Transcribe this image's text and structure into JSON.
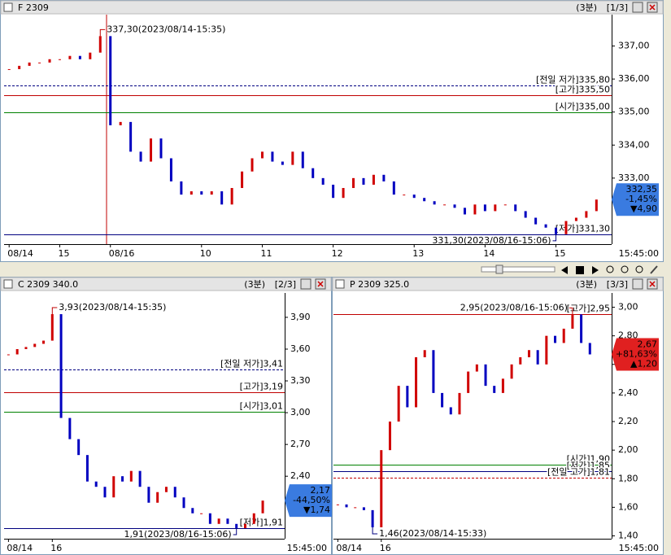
{
  "chart_data": [
    {
      "type": "candle",
      "title": "F 2309",
      "interval": "(3분)",
      "page": "[1/3]",
      "end_label": "15:45:00",
      "up_color": "#d00000",
      "down_color": "#0000c0",
      "ylim": [
        331.0,
        337.95
      ],
      "yticks": [
        {
          "value": 333,
          "label": "333,00"
        },
        {
          "value": 334,
          "label": "334,00"
        },
        {
          "value": 335,
          "label": "335,00"
        },
        {
          "value": 336,
          "label": "336,00"
        },
        {
          "value": 337,
          "label": "337,00"
        }
      ],
      "categories": [
        "08/14",
        null,
        null,
        null,
        null,
        "15",
        null,
        null,
        null,
        null,
        "08/16",
        null,
        null,
        null,
        null,
        null,
        null,
        null,
        null,
        "10",
        null,
        null,
        null,
        null,
        null,
        "11",
        null,
        null,
        null,
        null,
        null,
        null,
        "12",
        null,
        null,
        null,
        null,
        null,
        null,
        null,
        "13",
        null,
        null,
        null,
        null,
        null,
        null,
        "14",
        null,
        null,
        null,
        null,
        null,
        null,
        "15",
        null,
        null,
        null,
        null
      ],
      "values": [
        336.3,
        336.4,
        336.5,
        336.5,
        336.6,
        336.6,
        336.7,
        336.6,
        336.8,
        337.3,
        334.6,
        334.7,
        333.8,
        333.5,
        334.2,
        333.6,
        332.9,
        332.5,
        332.6,
        332.5,
        332.6,
        332.2,
        332.7,
        333.2,
        333.6,
        333.8,
        333.5,
        333.4,
        333.8,
        333.3,
        333.0,
        332.8,
        332.4,
        332.7,
        333.0,
        332.8,
        333.1,
        332.9,
        332.5,
        332.5,
        332.4,
        332.3,
        332.2,
        332.2,
        332.1,
        331.9,
        332.2,
        332.0,
        332.2,
        332.2,
        332.0,
        331.8,
        331.6,
        331.5,
        331.3,
        331.7,
        331.8,
        332.0,
        332.35
      ],
      "reference_lines": [
        {
          "label": "[전일 저가]335,80",
          "value": 335.8,
          "color": "#000080",
          "dashed": true
        },
        {
          "label": "[고가]335,50",
          "value": 335.5,
          "color": "#c00000",
          "dashed": false
        },
        {
          "label": "[시가]335,00",
          "value": 335.0,
          "color": "#008000",
          "dashed": false
        },
        {
          "label": "[저가]331,30",
          "value": 331.3,
          "color": "#000080",
          "dashed": false
        }
      ],
      "annotations": [
        {
          "label": "337,30(2023/08/14-15:35)",
          "value": 337.3,
          "index": 9,
          "color": "#c00000"
        },
        {
          "label": "331,30(2023/08/16-15:06)",
          "value": 331.3,
          "index": 54,
          "color": "#000080"
        }
      ],
      "price_box": {
        "price": "332,35",
        "change_pct": "-1,45%",
        "change": "▼4,90",
        "color": "#3a7be0"
      }
    },
    {
      "type": "candle",
      "title": "C 2309 340.0",
      "interval": "(3분)",
      "page": "[2/3]",
      "end_label": "15:45:00",
      "up_color": "#d00000",
      "down_color": "#0000c0",
      "ylim": [
        1.81,
        4.13
      ],
      "yticks": [
        {
          "value": 2.4,
          "label": "2,40"
        },
        {
          "value": 2.7,
          "label": "2,70"
        },
        {
          "value": 3.0,
          "label": "3,00"
        },
        {
          "value": 3.3,
          "label": "3,30"
        },
        {
          "value": 3.6,
          "label": "3,60"
        },
        {
          "value": 3.9,
          "label": "3,90"
        }
      ],
      "categories": [
        "08/14",
        null,
        null,
        null,
        null,
        "16",
        null,
        null,
        null,
        null,
        null,
        null,
        null,
        null,
        null,
        null,
        null,
        null,
        null,
        null,
        null,
        null,
        null,
        null,
        null,
        null,
        null,
        null,
        null,
        null
      ],
      "values": [
        3.55,
        3.6,
        3.62,
        3.65,
        3.68,
        3.93,
        2.95,
        2.75,
        2.6,
        2.35,
        2.3,
        2.2,
        2.4,
        2.35,
        2.45,
        2.3,
        2.15,
        2.25,
        2.3,
        2.2,
        2.1,
        2.05,
        2.05,
        1.95,
        2.0,
        1.95,
        1.91,
        1.95,
        2.05,
        2.17
      ],
      "reference_lines": [
        {
          "label": "[전일 저가]3,41",
          "value": 3.41,
          "color": "#000080",
          "dashed": true
        },
        {
          "label": "[고가]3,19",
          "value": 3.19,
          "color": "#c00000",
          "dashed": false
        },
        {
          "label": "[시가]3,01",
          "value": 3.01,
          "color": "#008000",
          "dashed": false
        },
        {
          "label": "[저가]1,91",
          "value": 1.91,
          "color": "#000080",
          "dashed": false
        }
      ],
      "annotations": [
        {
          "label": "3,93(2023/08/14-15:35)",
          "value": 3.93,
          "index": 5,
          "color": "#c00000"
        },
        {
          "label": "1,91(2023/08/16-15:06)",
          "value": 1.91,
          "index": 26,
          "color": "#000080"
        }
      ],
      "price_box": {
        "price": "2,17",
        "change_pct": "-44,50%",
        "change": "▼1,74",
        "color": "#3a7be0"
      }
    },
    {
      "type": "candle",
      "title": "P 2309 325.0",
      "interval": "(3분)",
      "page": "[3/3]",
      "end_label": "15:45:00",
      "up_color": "#d00000",
      "down_color": "#0000c0",
      "ylim": [
        1.38,
        3.1
      ],
      "yticks": [
        {
          "value": 1.4,
          "label": "1,40"
        },
        {
          "value": 1.6,
          "label": "1,60"
        },
        {
          "value": 1.8,
          "label": "1,80"
        },
        {
          "value": 2.0,
          "label": "2,00"
        },
        {
          "value": 2.2,
          "label": "2,20"
        },
        {
          "value": 2.4,
          "label": "2,40"
        },
        {
          "value": 2.6,
          "label": "2,60"
        },
        {
          "value": 2.8,
          "label": "2,80"
        },
        {
          "value": 3.0,
          "label": "3,00"
        }
      ],
      "categories": [
        "08/14",
        null,
        null,
        null,
        null,
        "16",
        null,
        null,
        null,
        null,
        null,
        null,
        null,
        null,
        null,
        null,
        null,
        null,
        null,
        null,
        null,
        null,
        null,
        null,
        null,
        null,
        null,
        null,
        null,
        null
      ],
      "values": [
        1.62,
        1.6,
        1.6,
        1.58,
        1.46,
        2.0,
        2.2,
        2.45,
        2.3,
        2.65,
        2.7,
        2.4,
        2.3,
        2.25,
        2.4,
        2.55,
        2.6,
        2.45,
        2.4,
        2.5,
        2.6,
        2.65,
        2.7,
        2.6,
        2.8,
        2.75,
        2.85,
        2.95,
        2.75,
        2.67
      ],
      "reference_lines": [
        {
          "label": "[고가]2,95",
          "value": 2.95,
          "color": "#c00000",
          "dashed": false
        },
        {
          "label": "[시가]1,90",
          "value": 1.9,
          "color": "#008000",
          "dashed": false
        },
        {
          "label": "[저가]1,85",
          "value": 1.85,
          "color": "#000080",
          "dashed": false
        },
        {
          "label": "[전일 고가]1,81",
          "value": 1.81,
          "color": "#c00000",
          "dashed": true
        }
      ],
      "annotations": [
        {
          "label": "2,95(2023/08/16-15:06)",
          "value": 2.95,
          "index": 27,
          "color": "#c00000"
        },
        {
          "label": "1,46(2023/08/14-15:33)",
          "value": 1.46,
          "index": 4,
          "color": "#000080"
        }
      ],
      "price_box": {
        "price": "2,67",
        "change_pct": "+81,63%",
        "change": "▲1,20",
        "color": "#e02020"
      }
    }
  ]
}
